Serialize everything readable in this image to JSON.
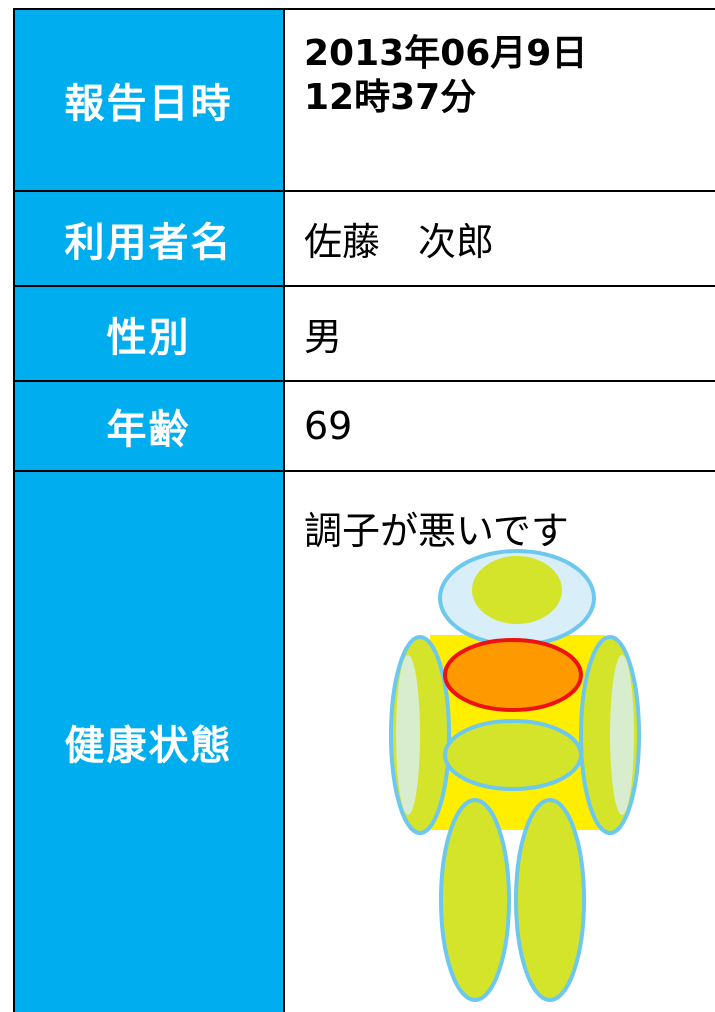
{
  "rows": [
    {
      "label": "報告日時",
      "value": [
        "2013年06月9日",
        "12時37分"
      ]
    },
    {
      "label": "利用者名",
      "value": "佐藤　次郎"
    },
    {
      "label": "性別",
      "value": "男"
    },
    {
      "label": "年齢",
      "value": "69"
    },
    {
      "label": "健康状態",
      "value": "調子が悪いです"
    }
  ]
}
